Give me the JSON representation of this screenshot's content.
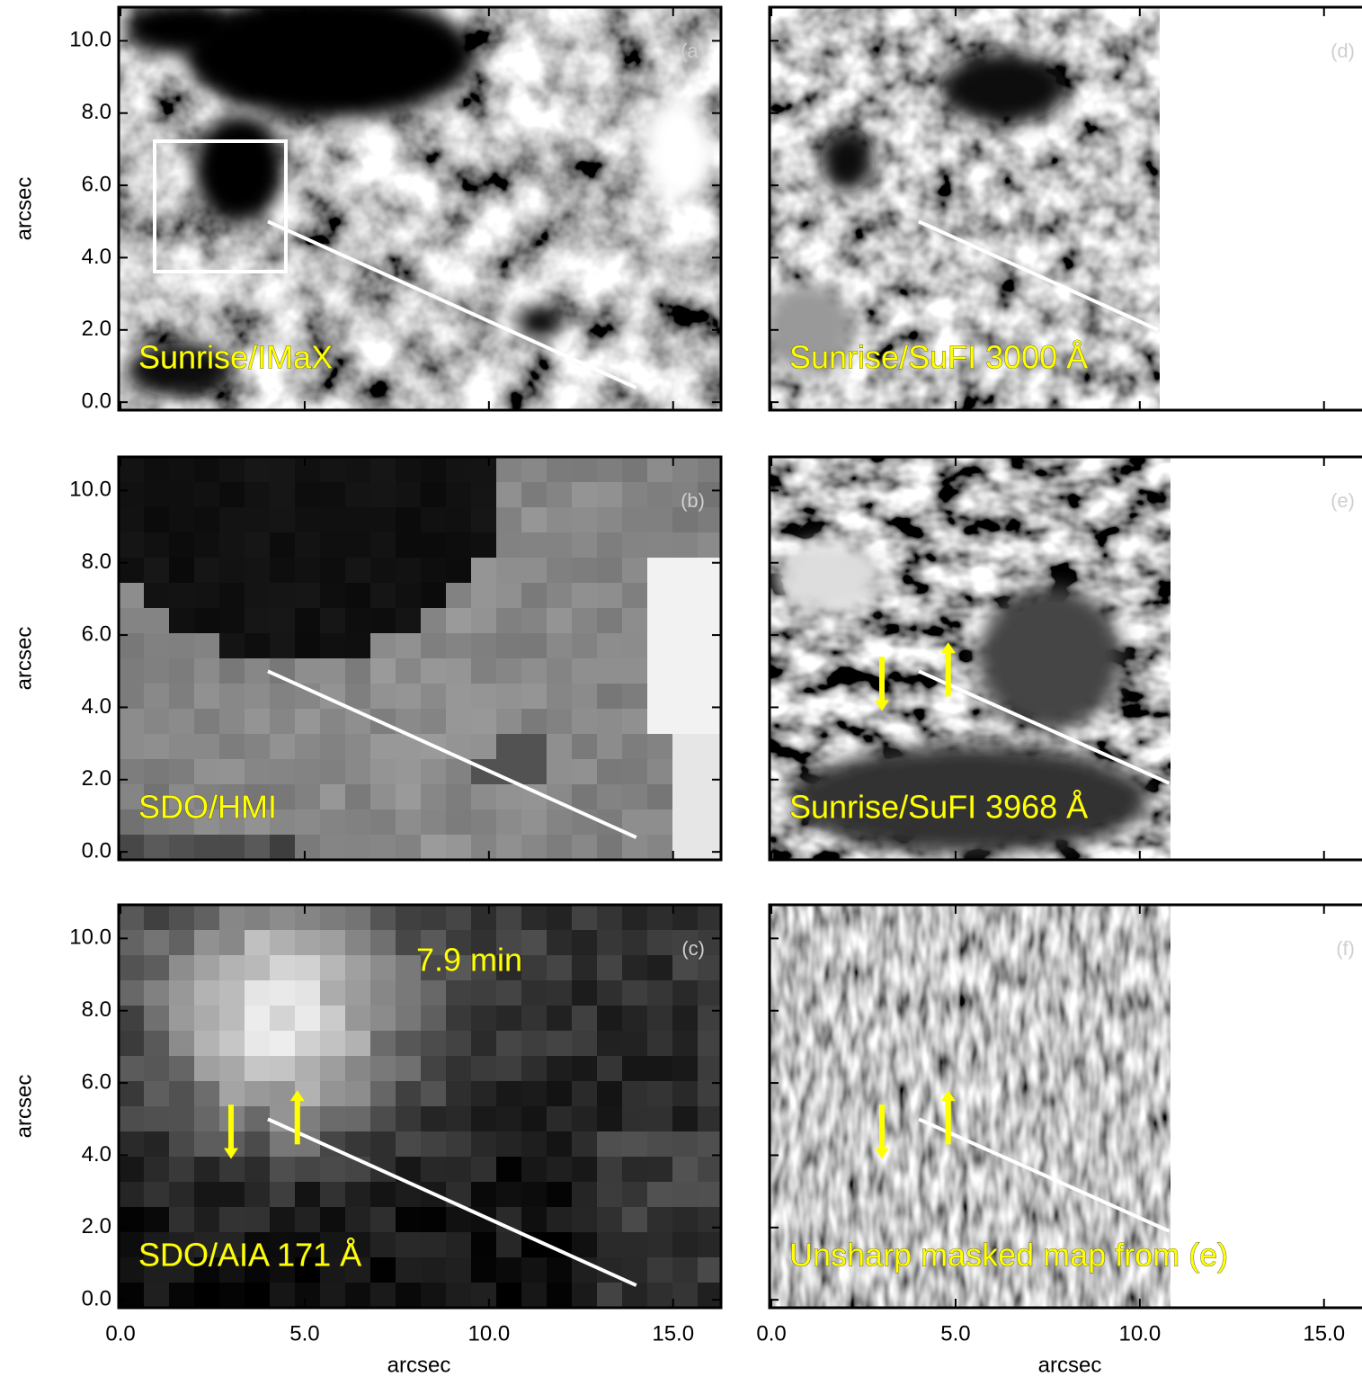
{
  "chart_data": [
    {
      "type": "image",
      "panel": "(a)",
      "annotation": "Sunrise/IMaX",
      "ylabel": "arcsec",
      "xlim": [
        -0.05,
        16.3
      ],
      "ylim": [
        -0.22,
        10.93
      ],
      "xticks": [
        0,
        5,
        10,
        15
      ],
      "yticks": [
        {
          "value": 0,
          "label": "0.0"
        },
        {
          "value": 2,
          "label": "2.0"
        },
        {
          "value": 4,
          "label": "4.0"
        },
        {
          "value": 6,
          "label": "6.0"
        },
        {
          "value": 8,
          "label": "8.0"
        },
        {
          "value": 10,
          "label": "10.0"
        }
      ],
      "slit": {
        "x": [
          4,
          14
        ],
        "y": [
          5,
          0.4
        ]
      },
      "slit_color": "#ffffff"
    },
    {
      "type": "image",
      "panel": "(b)",
      "annotation": "SDO/HMI",
      "ylabel": "arcsec",
      "xlim": [
        -0.05,
        16.3
      ],
      "ylim": [
        -0.22,
        10.93
      ],
      "xticks": [
        0,
        5,
        10,
        15
      ],
      "yticks": [
        {
          "value": 0,
          "label": "0.0"
        },
        {
          "value": 2,
          "label": "2.0"
        },
        {
          "value": 4,
          "label": "4.0"
        },
        {
          "value": 6,
          "label": "6.0"
        },
        {
          "value": 8,
          "label": "8.0"
        },
        {
          "value": 10,
          "label": "10.0"
        }
      ],
      "slit": {
        "x": [
          4,
          14
        ],
        "y": [
          5,
          0.4
        ]
      },
      "slit_color": "#ffffff"
    },
    {
      "type": "image",
      "panel": "(c)",
      "annotation": "SDO/AIA 171 Å",
      "note": "7.9 min",
      "ylabel": "arcsec",
      "xlabel": "arcsec",
      "xlim": [
        -0.05,
        16.3
      ],
      "ylim": [
        -0.22,
        10.93
      ],
      "xticks": [
        {
          "value": 0,
          "label": "0.0"
        },
        {
          "value": 5,
          "label": "5.0"
        },
        {
          "value": 10,
          "label": "10.0"
        },
        {
          "value": 15,
          "label": "15.0"
        }
      ],
      "yticks": [
        {
          "value": 0,
          "label": "0.0"
        },
        {
          "value": 2,
          "label": "2.0"
        },
        {
          "value": 4,
          "label": "4.0"
        },
        {
          "value": 6,
          "label": "6.0"
        },
        {
          "value": 8,
          "label": "8.0"
        },
        {
          "value": 10,
          "label": "10.0"
        }
      ],
      "slit": {
        "x": [
          4,
          14
        ],
        "y": [
          5,
          0.4
        ]
      },
      "slit_color": "#ffffff"
    },
    {
      "type": "image",
      "panel": "(d)",
      "annotation": "Sunrise/SuFI 3000 Å",
      "xlim": [
        -0.05,
        16.3
      ],
      "ylim": [
        -0.22,
        10.93
      ],
      "xticks": [
        0,
        5,
        10,
        15
      ],
      "yticks": [
        0,
        2,
        4,
        6,
        8,
        10
      ],
      "slit": {
        "x": [
          4,
          10.5
        ],
        "y": [
          5,
          2.0
        ]
      },
      "slit_color": "#ffffff"
    },
    {
      "type": "image",
      "panel": "(e)",
      "annotation": "Sunrise/SuFI 3968 Å",
      "xlim": [
        -0.05,
        16.3
      ],
      "ylim": [
        -0.22,
        10.93
      ],
      "xticks": [
        0,
        5,
        10,
        15
      ],
      "yticks": [
        0,
        2,
        4,
        6,
        8,
        10
      ],
      "slit": {
        "x": [
          4,
          10.8
        ],
        "y": [
          5,
          1.9
        ]
      },
      "slit_color": "#ffffff"
    },
    {
      "type": "image",
      "panel": "(f)",
      "annotation": "Unsharp masked map from (e)",
      "xlabel": "arcsec",
      "xlim": [
        -0.05,
        16.3
      ],
      "ylim": [
        -0.22,
        10.93
      ],
      "xticks": [
        {
          "value": 0,
          "label": "0.0"
        },
        {
          "value": 5,
          "label": "5.0"
        },
        {
          "value": 10,
          "label": "10.0"
        },
        {
          "value": 15,
          "label": "15.0"
        }
      ],
      "yticks": [
        0,
        2,
        4,
        6,
        8,
        10
      ],
      "slit": {
        "x": [
          4,
          10.8
        ],
        "y": [
          5,
          1.9
        ]
      },
      "slit_color": "#ffffff"
    }
  ]
}
